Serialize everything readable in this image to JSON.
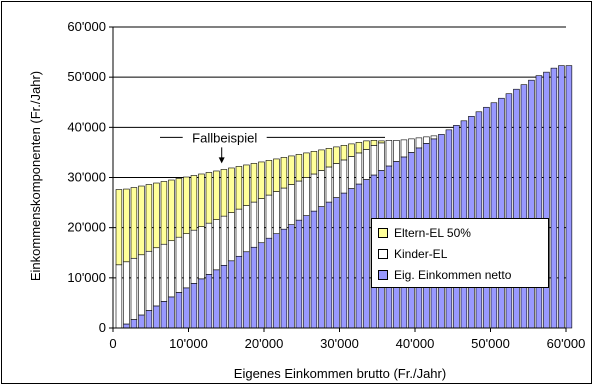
{
  "colors": {
    "eltern": "#ffff99",
    "kinder": "#ffffff",
    "eigen": "#9999ff",
    "outline": "#000000",
    "grid": "#000000"
  },
  "chart_data": {
    "type": "bar",
    "stacked": true,
    "xlabel": "Eigenes Einkommen brutto (Fr./Jahr)",
    "ylabel": "Einkommenskomponenten (Fr./Jahr)",
    "xlim": [
      0,
      60000
    ],
    "ylim": [
      0,
      60000
    ],
    "x_ticks": [
      "0",
      "10'000",
      "20'000",
      "30'000",
      "40'000",
      "50'000",
      "60'000"
    ],
    "y_ticks": [
      "0",
      "10'000",
      "20'000",
      "30'000",
      "40'000",
      "50'000",
      "60'000"
    ],
    "x_tick_values": [
      0,
      10000,
      20000,
      30000,
      40000,
      50000,
      60000
    ],
    "y_tick_values": [
      0,
      10000,
      20000,
      30000,
      40000,
      50000,
      60000
    ],
    "grid": "horizontal",
    "legend_position": "right-bottom",
    "series": [
      {
        "name": "Eltern-EL 50%",
        "color": "#ffff99",
        "x": "eigenes Einkommen brutto 0–35'000 in 1'000er Schritten",
        "values": [
          15000,
          14500,
          14100,
          13700,
          13300,
          12900,
          12500,
          12100,
          11700,
          11300,
          10900,
          10500,
          10100,
          9700,
          9300,
          8900,
          8500,
          8100,
          7700,
          7300,
          6900,
          6500,
          6100,
          5700,
          5300,
          4900,
          4500,
          4100,
          3700,
          3300,
          2900,
          2500,
          2100,
          1700,
          1000,
          400,
          0,
          0,
          0,
          0,
          0,
          0,
          0,
          0,
          0,
          0,
          0,
          0,
          0,
          0,
          0,
          0,
          0,
          0,
          0,
          0,
          0,
          0,
          0,
          0,
          0
        ]
      },
      {
        "name": "Kinder-EL",
        "color": "#ffffff",
        "values": [
          12600,
          12400,
          12200,
          12000,
          11800,
          11600,
          11400,
          11200,
          11000,
          10800,
          10600,
          10400,
          10200,
          10000,
          9800,
          9600,
          9400,
          9200,
          9000,
          8800,
          8600,
          8400,
          8200,
          8000,
          7800,
          7600,
          7400,
          7200,
          7000,
          6800,
          6600,
          6400,
          6200,
          6000,
          5900,
          5500,
          5100,
          4200,
          3400,
          2700,
          2000,
          1300,
          600,
          0,
          0,
          0,
          0,
          0,
          0,
          0,
          0,
          0,
          0,
          0,
          0,
          0,
          0,
          0,
          0,
          0,
          0
        ]
      },
      {
        "name": "Eig. Einkommen netto",
        "color": "#9999ff",
        "values": [
          0,
          800,
          1700,
          2600,
          3500,
          4400,
          5300,
          6200,
          7100,
          8000,
          8900,
          9800,
          10700,
          11600,
          12500,
          13400,
          14300,
          15200,
          16100,
          17000,
          17900,
          18800,
          19700,
          20600,
          21500,
          22400,
          23300,
          24200,
          25100,
          26000,
          26900,
          27800,
          28700,
          29600,
          30500,
          31400,
          32300,
          33200,
          34100,
          35000,
          35900,
          36800,
          37700,
          38600,
          39500,
          40400,
          41300,
          42200,
          43100,
          44000,
          44900,
          45800,
          46700,
          47600,
          48500,
          49400,
          50300,
          51000,
          51800,
          52300,
          52300
        ]
      }
    ],
    "bar_x_values": [
      0,
      1000,
      2000,
      3000,
      4000,
      5000,
      6000,
      7000,
      8000,
      9000,
      10000,
      11000,
      12000,
      13000,
      14000,
      15000,
      16000,
      17000,
      18000,
      19000,
      20000,
      21000,
      22000,
      23000,
      24000,
      25000,
      26000,
      27000,
      28000,
      29000,
      30000,
      31000,
      32000,
      33000,
      34000,
      35000,
      36000,
      37000,
      38000,
      39000,
      40000,
      41000,
      42000,
      43000,
      44000,
      45000,
      46000,
      47000,
      48000,
      49000,
      50000,
      51000,
      52000,
      53000,
      54000,
      55000,
      56000,
      57000,
      58000,
      59000,
      60000
    ],
    "annotations": [
      {
        "text": "Fallbeispiel",
        "x": 14000,
        "y": 38000
      }
    ]
  }
}
